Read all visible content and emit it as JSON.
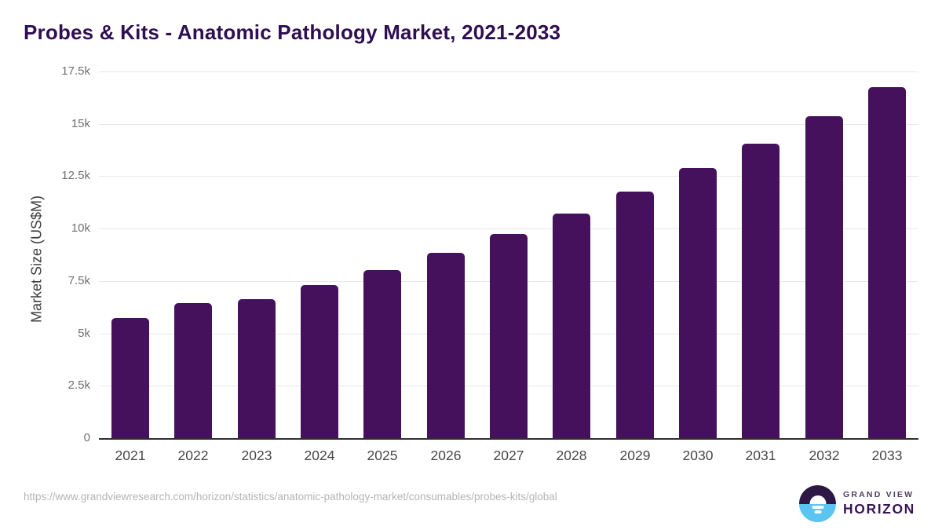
{
  "title": "Probes & Kits - Anatomic Pathology Market, 2021-2033",
  "chart_data": {
    "type": "bar",
    "categories": [
      "2021",
      "2022",
      "2023",
      "2024",
      "2025",
      "2026",
      "2027",
      "2028",
      "2029",
      "2030",
      "2031",
      "2032",
      "2033"
    ],
    "values": [
      5750,
      6440,
      6650,
      7310,
      8030,
      8850,
      9750,
      10710,
      11750,
      12880,
      14060,
      15380,
      16750
    ],
    "title": "Probes & Kits - Anatomic Pathology Market, 2021-2033",
    "xlabel": "",
    "ylabel": "Market Size (US$M)",
    "ylim": [
      0,
      17500
    ],
    "yticks": [
      0,
      2500,
      5000,
      7500,
      10000,
      12500,
      15000,
      17500
    ],
    "ytick_labels": [
      "0",
      "2.5k",
      "5k",
      "7.5k",
      "10k",
      "12.5k",
      "15k",
      "17.5k"
    ],
    "grid": true,
    "legend": "none",
    "bar_color": "#46115c"
  },
  "colors": {
    "bar": "#46115c",
    "title": "#2f0e52",
    "gridline": "#e8e8e8",
    "axis_line": "#2f2f2f",
    "y_tick": "#707070",
    "x_tick": "#474747",
    "url_text": "#b4b4b4",
    "logo_purple": "#2d1745",
    "logo_blue": "#5bc5f2",
    "logo_text_dark": "#3a1556"
  },
  "footer": {
    "source_url": "https://www.grandviewresearch.com/horizon/statistics/anatomic-pathology-market/consumables/probes-kits/global",
    "logo": {
      "icon": "horizon-logo-icon",
      "line1": "GRAND VIEW",
      "line2": "HORIZON"
    }
  }
}
